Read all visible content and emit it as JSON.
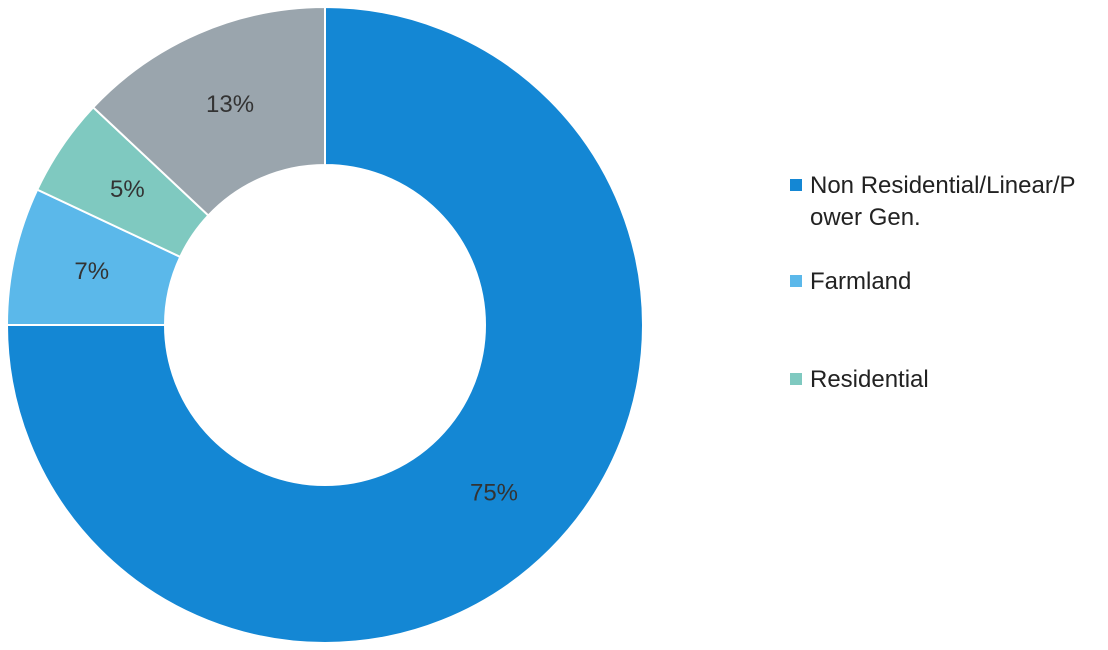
{
  "chart_data": {
    "type": "pie",
    "donut": true,
    "categories": [
      "Non Residential/Linear/Power Gen.",
      "Farmland",
      "Residential",
      ""
    ],
    "values": [
      75,
      7,
      5,
      13
    ],
    "labels": [
      "75%",
      "7%",
      "5%",
      "13%"
    ],
    "colors": [
      "#1487d4",
      "#5bb8ea",
      "#7fc9c0",
      "#9aa5ad"
    ],
    "legend": {
      "position": "right",
      "entries": [
        {
          "label": "Non Residential/Linear/Power Gen.",
          "color": "#1487d4"
        },
        {
          "label": "Farmland",
          "color": "#5bb8ea"
        },
        {
          "label": "Residential",
          "color": "#7fc9c0"
        }
      ]
    }
  }
}
